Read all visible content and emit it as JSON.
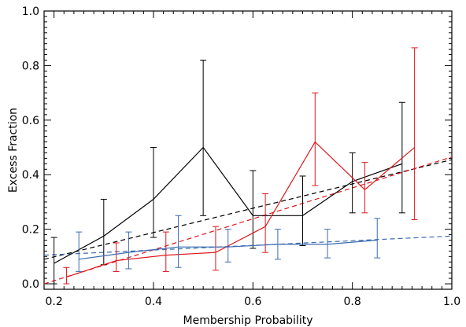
{
  "chart_data": {
    "type": "line",
    "xlabel": "Membership Probability",
    "ylabel": "Excess Fraction",
    "xlim": [
      0.18,
      1.0
    ],
    "ylim": [
      -0.02,
      1.0
    ],
    "xticks": [
      0.2,
      0.4,
      0.6,
      0.8,
      1.0
    ],
    "xtick_labels": [
      "0.2",
      "0.4",
      "0.6",
      "0.8",
      "1.0"
    ],
    "yticks": [
      0.0,
      0.2,
      0.4,
      0.6,
      0.8,
      1.0
    ],
    "ytick_labels": [
      "0.0",
      "0.2",
      "0.4",
      "0.6",
      "0.8",
      "1.0"
    ],
    "grid": false,
    "series": [
      {
        "color": "#000000",
        "x": [
          0.2,
          0.3,
          0.4,
          0.5,
          0.6,
          0.7,
          0.8,
          0.9
        ],
        "y": [
          0.075,
          0.175,
          0.31,
          0.5,
          0.25,
          0.25,
          0.375,
          0.44
        ],
        "err_low": [
          0.0,
          0.07,
          0.17,
          0.25,
          0.13,
          0.14,
          0.26,
          0.26
        ],
        "err_high": [
          0.17,
          0.31,
          0.5,
          0.82,
          0.415,
          0.395,
          0.48,
          0.665
        ],
        "fit": {
          "style": "dashed",
          "x": [
            0.18,
            1.0
          ],
          "y": [
            0.09,
            0.455
          ]
        }
      },
      {
        "color": "#e0161b",
        "x": [
          0.225,
          0.325,
          0.425,
          0.525,
          0.625,
          0.725,
          0.825,
          0.925
        ],
        "y": [
          0.025,
          0.085,
          0.105,
          0.115,
          0.21,
          0.52,
          0.345,
          0.5
        ],
        "err_low": [
          0.0,
          0.045,
          0.045,
          0.05,
          0.115,
          0.36,
          0.26,
          0.235
        ],
        "err_high": [
          0.06,
          0.15,
          0.19,
          0.21,
          0.33,
          0.7,
          0.445,
          0.865
        ],
        "fit": {
          "style": "dashed",
          "x": [
            0.18,
            1.0
          ],
          "y": [
            0.0,
            0.465
          ]
        }
      },
      {
        "color": "#3b6bb0",
        "x": [
          0.25,
          0.35,
          0.45,
          0.55,
          0.65,
          0.75,
          0.85
        ],
        "y": [
          0.09,
          0.115,
          0.135,
          0.135,
          0.145,
          0.145,
          0.16
        ],
        "err_low": [
          0.045,
          0.055,
          0.06,
          0.08,
          0.09,
          0.095,
          0.095
        ],
        "err_high": [
          0.19,
          0.19,
          0.25,
          0.2,
          0.2,
          0.2,
          0.24
        ],
        "fit": {
          "style": "dashed",
          "x": [
            0.18,
            1.0
          ],
          "y": [
            0.105,
            0.175
          ]
        }
      }
    ]
  }
}
